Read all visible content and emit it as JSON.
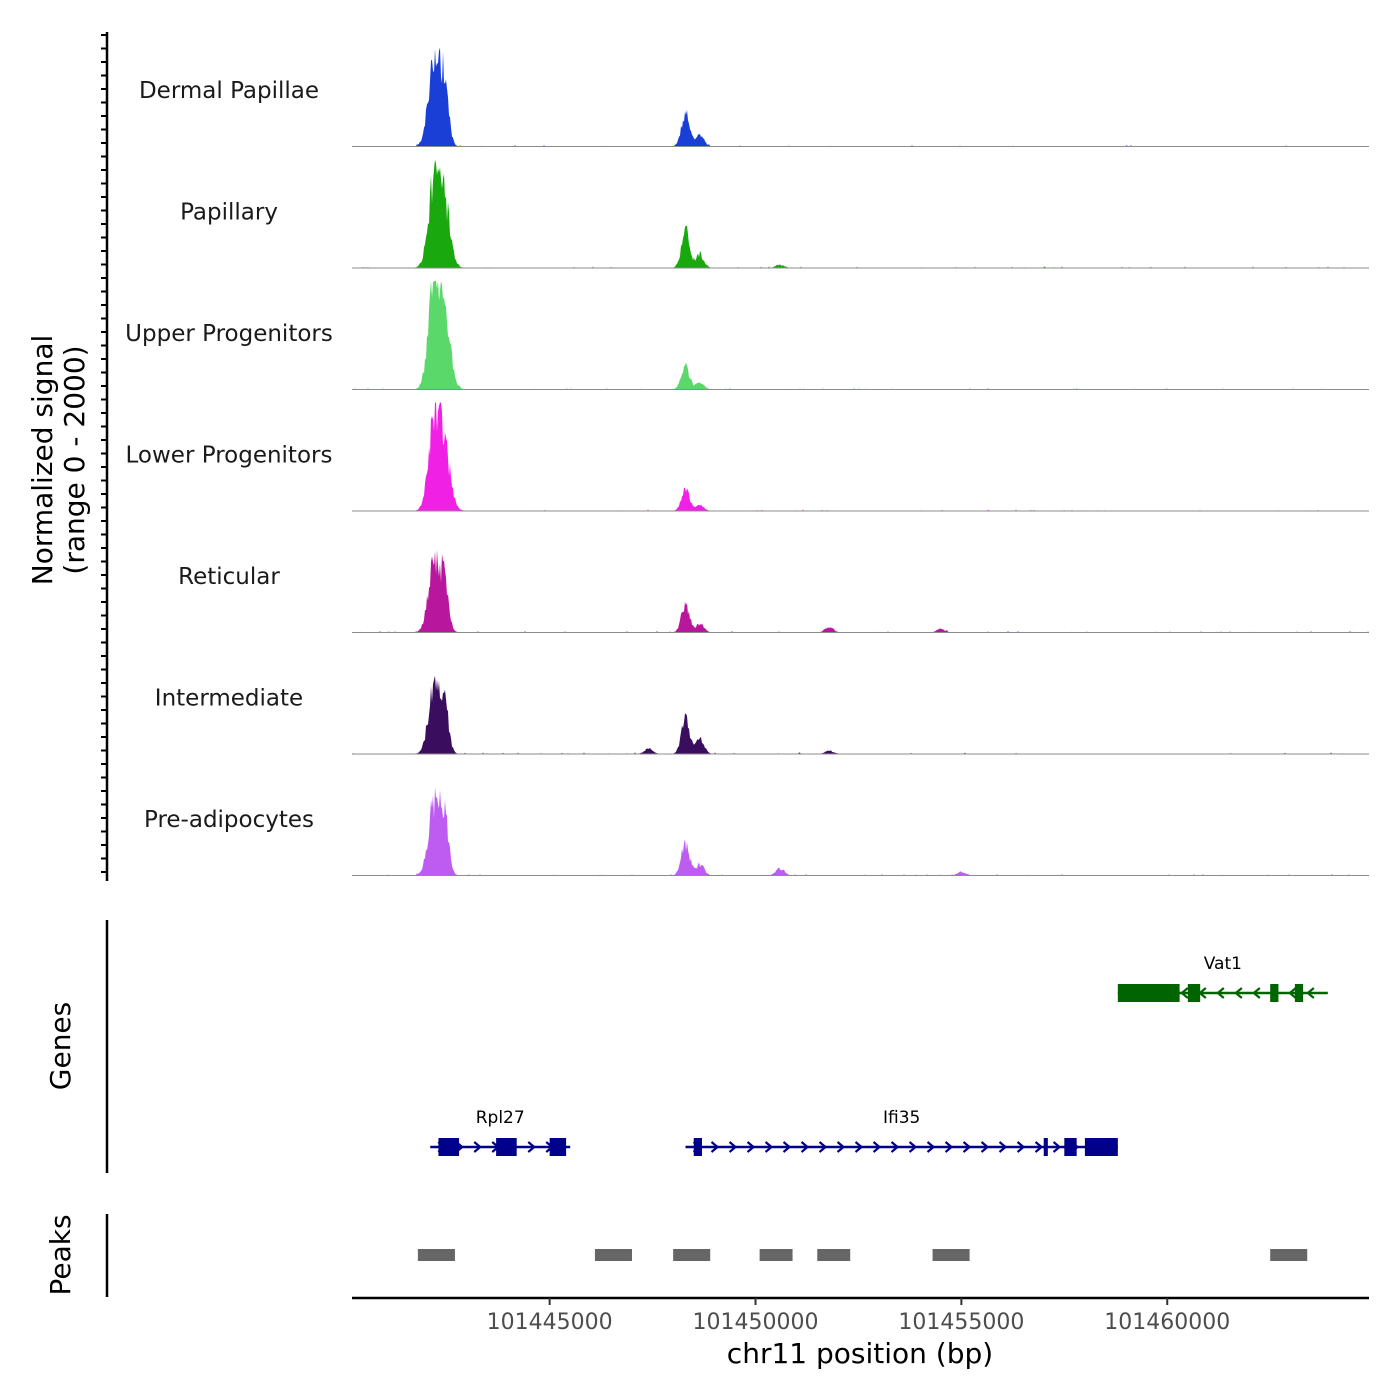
{
  "chart_data": {
    "type": "area",
    "chromosome": "chr11",
    "xlim": [
      101440200,
      101464900
    ],
    "x_ticks": [
      101445000,
      101450000,
      101455000,
      101460000
    ],
    "x_tick_labels": [
      "101445000",
      "101450000",
      "101455000",
      "101460000"
    ],
    "xlabel": "chr11 position (bp)",
    "ylabel_line1": "Normalized signal",
    "ylabel_line2": "(range 0 - 2000)",
    "ylim": [
      0,
      2000
    ],
    "genes_label": "Genes",
    "peaks_label": "Peaks",
    "series": [
      {
        "name": "Dermal Papillae",
        "color": "#1a3fd6",
        "peaks": [
          [
            101442200,
            1500
          ],
          [
            101442450,
            1000
          ],
          [
            101448300,
            600
          ],
          [
            101448650,
            200
          ]
        ]
      },
      {
        "name": "Papillary",
        "color": "#1aa80f",
        "peaks": [
          [
            101442200,
            1550
          ],
          [
            101442450,
            1050
          ],
          [
            101448300,
            700
          ],
          [
            101448650,
            250
          ],
          [
            101450600,
            60
          ]
        ]
      },
      {
        "name": "Upper Progenitors",
        "color": "#5ad86a",
        "peaks": [
          [
            101442200,
            1850
          ],
          [
            101442450,
            1200
          ],
          [
            101448300,
            400
          ],
          [
            101448650,
            120
          ]
        ]
      },
      {
        "name": "Lower Progenitors",
        "color": "#f020e4",
        "peaks": [
          [
            101442200,
            1600
          ],
          [
            101442450,
            1050
          ],
          [
            101448300,
            380
          ],
          [
            101448650,
            100
          ]
        ]
      },
      {
        "name": "Reticular",
        "color": "#b8169c",
        "peaks": [
          [
            101442200,
            1250
          ],
          [
            101442450,
            800
          ],
          [
            101448300,
            500
          ],
          [
            101448650,
            150
          ],
          [
            101451800,
            100
          ],
          [
            101454500,
            60
          ]
        ]
      },
      {
        "name": "Intermediate",
        "color": "#3b0d5e",
        "peaks": [
          [
            101442200,
            1200
          ],
          [
            101442450,
            800
          ],
          [
            101448300,
            650
          ],
          [
            101448650,
            260
          ],
          [
            101447400,
            100
          ],
          [
            101451800,
            60
          ]
        ]
      },
      {
        "name": "Pre-adipocytes",
        "color": "#be5cf2",
        "peaks": [
          [
            101442200,
            1350
          ],
          [
            101442450,
            900
          ],
          [
            101448300,
            580
          ],
          [
            101448650,
            200
          ],
          [
            101450600,
            130
          ],
          [
            101455000,
            60
          ]
        ]
      }
    ],
    "genes": [
      {
        "name": "Vat1",
        "strand": "-",
        "color": "#006400",
        "start": 101458800,
        "end": 101463900,
        "exons": [
          [
            101458800,
            101460300
          ],
          [
            101460500,
            101460800
          ],
          [
            101462500,
            101462700
          ],
          [
            101463100,
            101463300
          ]
        ]
      },
      {
        "name": "Rpl27",
        "strand": "+",
        "color": "#00008b",
        "start": 101442100,
        "end": 101445500,
        "exons": [
          [
            101442300,
            101442800
          ],
          [
            101443700,
            101444200
          ],
          [
            101445000,
            101445400
          ]
        ]
      },
      {
        "name": "Ifi35",
        "strand": "+",
        "color": "#00008b",
        "start": 101448300,
        "end": 101458800,
        "exons": [
          [
            101448500,
            101448700
          ],
          [
            101457000,
            101457100
          ],
          [
            101457500,
            101457800
          ],
          [
            101458000,
            101458800
          ]
        ]
      }
    ],
    "peaks": [
      [
        101441800,
        101442700
      ],
      [
        101446100,
        101447000
      ],
      [
        101448000,
        101448900
      ],
      [
        101450100,
        101450900
      ],
      [
        101451500,
        101452300
      ],
      [
        101454300,
        101455200
      ],
      [
        101462500,
        101463400
      ]
    ]
  }
}
